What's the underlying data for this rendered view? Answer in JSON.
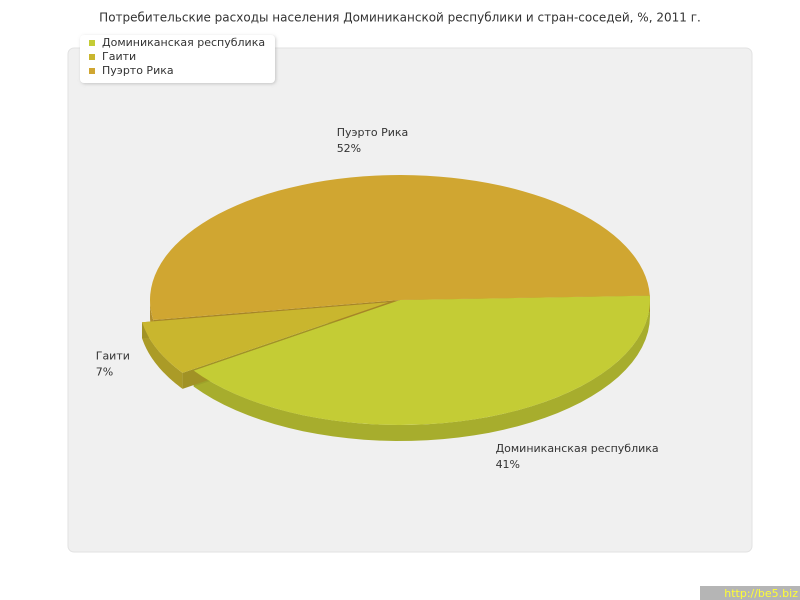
{
  "chart_data": {
    "type": "pie",
    "title": "Потребительские расходы населения Доминиканской республики и стран-соседей, %, 2011 г.",
    "categories": [
      "Доминиканская республика",
      "Гаити",
      "Пуэрто Рика"
    ],
    "values": [
      41,
      7,
      52
    ],
    "value_labels": [
      "41%",
      "7%",
      "52%"
    ],
    "colors": [
      "#c4cc35",
      "#c9b62e",
      "#d0a631"
    ],
    "legend": "top-left"
  },
  "watermark": "http://be5.biz"
}
